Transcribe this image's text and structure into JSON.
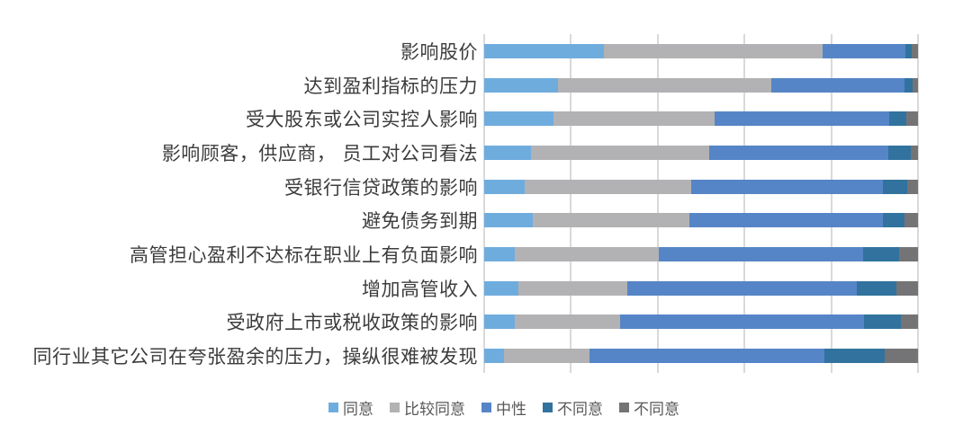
{
  "chart_data": {
    "type": "bar",
    "orientation": "horizontal",
    "stacking": "percent",
    "title": "",
    "xlabel": "",
    "ylabel": "",
    "xlim": [
      0,
      100
    ],
    "gridline_interval": 20,
    "grid": "vertical",
    "legend_position": "bottom",
    "categories": [
      "影响股价",
      "达到盈利指标的压力",
      "受大股东或公司实控人影响",
      "影响顾客，供应商， 员工对公司看法",
      "受银行信贷政策的影响",
      "避免债务到期",
      "高管担心盈利不达标在职业上有负面影响",
      "增加高管收入",
      "受政府上市或税收政策的影响",
      "同行业其它公司在夸张盈余的压力，操纵很难被发现"
    ],
    "series": [
      {
        "name": "同意",
        "color": "#6FACDE",
        "values": [
          27.5,
          17.1,
          16.0,
          10.8,
          9.3,
          11.3,
          7.0,
          7.8,
          7.1,
          4.6
        ]
      },
      {
        "name": "比较同意",
        "color": "#B2B2B4",
        "values": [
          50.5,
          49.0,
          37.1,
          41.0,
          38.5,
          36.1,
          33.3,
          25.2,
          24.3,
          19.6
        ]
      },
      {
        "name": "中性",
        "color": "#5585C6",
        "values": [
          19.2,
          30.8,
          40.3,
          41.3,
          44.2,
          44.6,
          47.0,
          52.8,
          56.2,
          54.2
        ]
      },
      {
        "name": "不同意",
        "color": "#31739E",
        "values": [
          1.4,
          1.9,
          4.0,
          5.2,
          5.6,
          4.9,
          8.4,
          9.2,
          8.5,
          14.0
        ]
      },
      {
        "name": "不同意",
        "color": "#747476",
        "values": [
          1.4,
          1.2,
          2.6,
          1.7,
          2.4,
          3.1,
          4.3,
          5.0,
          3.9,
          7.6
        ]
      }
    ]
  },
  "colors": {
    "background": "#FFFFFF",
    "gridline": "#D9D9D9",
    "category_text": "#3C3C3C",
    "legend_text": "#595959"
  }
}
